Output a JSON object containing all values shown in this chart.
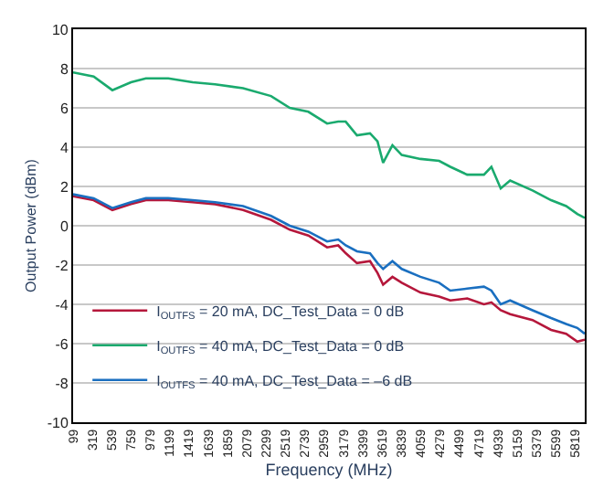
{
  "chart_data": {
    "type": "line",
    "xlabel": "Frequency (MHz)",
    "ylabel": "Output Power (dBm)",
    "x": [
      99,
      333,
      546,
      758,
      928,
      1183,
      1460,
      1715,
      2034,
      2353,
      2566,
      2778,
      2991,
      3118,
      3203,
      3331,
      3480,
      3565,
      3629,
      3735,
      3841,
      4054,
      4267,
      4394,
      4586,
      4777,
      4862,
      4968,
      5075,
      5330,
      5542,
      5713,
      5840,
      5925
    ],
    "series": [
      {
        "name": "I$_{OUTFS}$ = 20 mA, DC_Test_Data = 0 dB",
        "color": "#b5173b",
        "values": [
          1.5,
          1.3,
          0.8,
          1.1,
          1.3,
          1.3,
          1.2,
          1.1,
          0.8,
          0.3,
          -0.2,
          -0.5,
          -1.1,
          -1.0,
          -1.4,
          -1.9,
          -1.8,
          -2.4,
          -3.0,
          -2.6,
          -2.9,
          -3.4,
          -3.6,
          -3.8,
          -3.7,
          -4.0,
          -3.9,
          -4.3,
          -4.5,
          -4.8,
          -5.3,
          -5.5,
          -5.9,
          -5.8
        ]
      },
      {
        "name": "I$_{OUTFS}$ = 40 mA, DC_Test_Data = 0 dB",
        "color": "#1aaa6e",
        "values": [
          7.8,
          7.6,
          6.9,
          7.3,
          7.5,
          7.5,
          7.3,
          7.2,
          7.0,
          6.6,
          6.0,
          5.8,
          5.2,
          5.3,
          5.3,
          4.6,
          4.7,
          4.3,
          3.2,
          4.1,
          3.6,
          3.4,
          3.3,
          3.0,
          2.6,
          2.6,
          3.0,
          1.9,
          2.3,
          1.8,
          1.3,
          1.0,
          0.6,
          0.4
        ]
      },
      {
        "name": "I$_{OUTFS}$ = 40 mA, DC_Test_Data = –6 dB",
        "color": "#1a6fc0",
        "values": [
          1.6,
          1.4,
          0.9,
          1.2,
          1.4,
          1.4,
          1.3,
          1.2,
          1.0,
          0.5,
          0.0,
          -0.3,
          -0.8,
          -0.7,
          -1.0,
          -1.3,
          -1.4,
          -1.9,
          -2.2,
          -1.8,
          -2.2,
          -2.6,
          -2.9,
          -3.3,
          -3.2,
          -3.1,
          -3.3,
          -4.0,
          -3.8,
          -4.3,
          -4.7,
          -5.0,
          -5.2,
          -5.5
        ]
      }
    ],
    "xlim": [
      99,
      5925
    ],
    "xticks": [
      99,
      319,
      539,
      759,
      979,
      1199,
      1419,
      1639,
      1859,
      2079,
      2299,
      2519,
      2739,
      2959,
      3179,
      3399,
      3619,
      3839,
      4059,
      4279,
      4499,
      4719,
      4939,
      5159,
      5379,
      5599,
      5819
    ],
    "ylim": [
      -10,
      10
    ],
    "yticks": [
      -10,
      -8,
      -6,
      -4,
      -2,
      0,
      2,
      4,
      6,
      8,
      10
    ],
    "grid": "y",
    "legend": "bottom left"
  }
}
